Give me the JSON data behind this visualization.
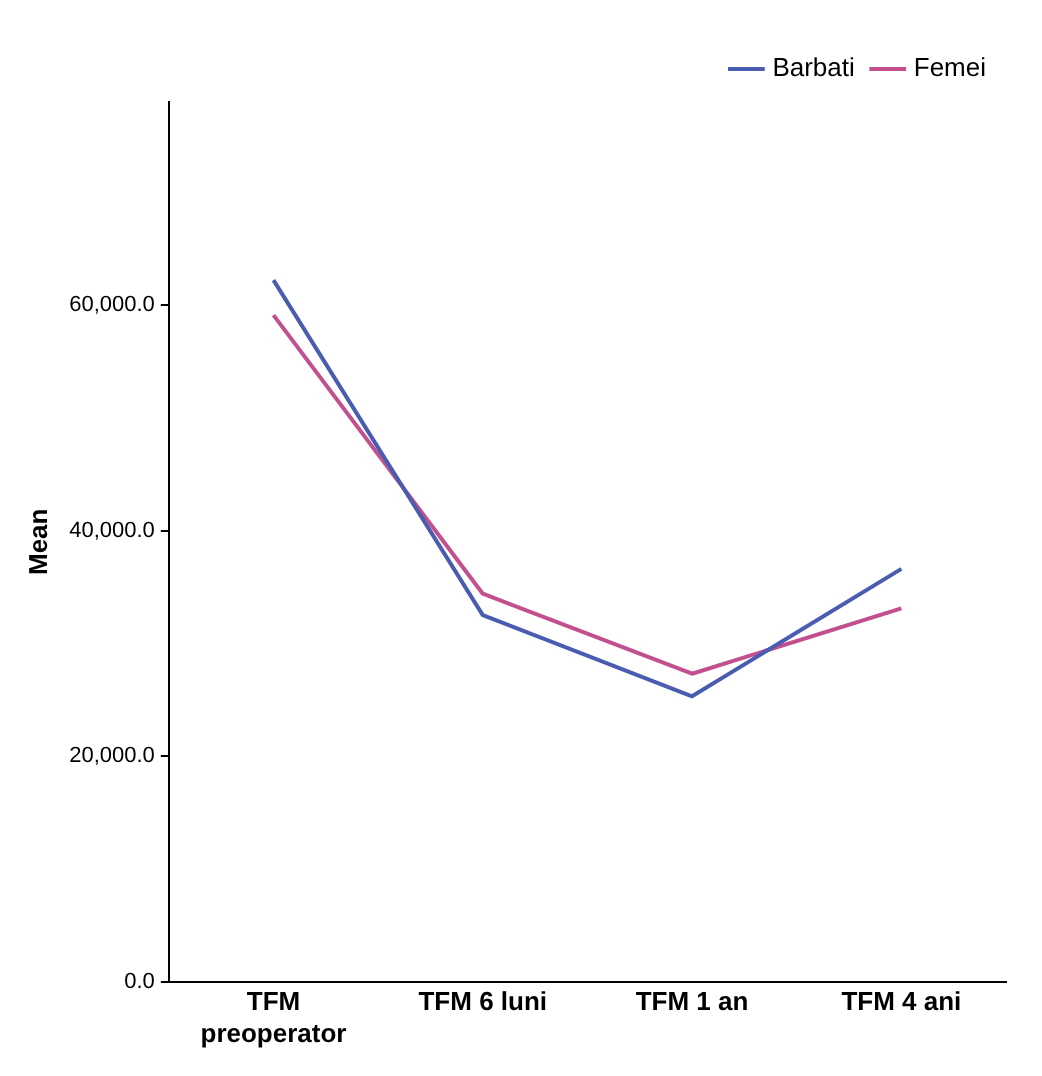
{
  "chart_data": {
    "type": "line",
    "ylabel": "Mean",
    "categories": [
      "TFM preoperator",
      "TFM 6 luni",
      "TFM 1 an",
      "TFM 4 ani"
    ],
    "series": [
      {
        "name": "Barbati",
        "color": "#4a5cb0",
        "values": [
          62200,
          32500,
          25300,
          36600
        ]
      },
      {
        "name": "Femei",
        "color": "#c2508e",
        "values": [
          59100,
          34400,
          27300,
          33100
        ]
      }
    ],
    "ylim": [
      0,
      78000
    ],
    "yticks": [
      {
        "value": 0,
        "label": "0.0"
      },
      {
        "value": 20000,
        "label": "20,000.0"
      },
      {
        "value": 40000,
        "label": "40,000.0"
      },
      {
        "value": 60000,
        "label": "60,000.0"
      }
    ],
    "grid": false,
    "legend": "top right",
    "marker": "none",
    "line_style": "solid"
  }
}
